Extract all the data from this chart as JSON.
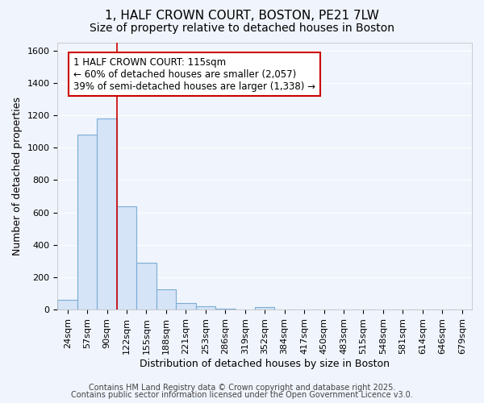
{
  "title1": "1, HALF CROWN COURT, BOSTON, PE21 7LW",
  "title2": "Size of property relative to detached houses in Boston",
  "xlabel": "Distribution of detached houses by size in Boston",
  "ylabel": "Number of detached properties",
  "categories": [
    "24sqm",
    "57sqm",
    "90sqm",
    "122sqm",
    "155sqm",
    "188sqm",
    "221sqm",
    "253sqm",
    "286sqm",
    "319sqm",
    "352sqm",
    "384sqm",
    "417sqm",
    "450sqm",
    "483sqm",
    "515sqm",
    "548sqm",
    "581sqm",
    "614sqm",
    "646sqm",
    "679sqm"
  ],
  "values": [
    60,
    1080,
    1180,
    640,
    290,
    125,
    40,
    20,
    5,
    0,
    15,
    0,
    0,
    0,
    0,
    0,
    0,
    0,
    0,
    0,
    0
  ],
  "bar_color": "#d6e4f7",
  "bar_edge_color": "#7aadd4",
  "red_line_x": 2.5,
  "annotation_text": "1 HALF CROWN COURT: 115sqm\n← 60% of detached houses are smaller (2,057)\n39% of semi-detached houses are larger (1,338) →",
  "annotation_box_facecolor": "#ffffff",
  "annotation_box_edgecolor": "#cc0000",
  "red_line_color": "#cc0000",
  "ylim": [
    0,
    1650
  ],
  "yticks": [
    0,
    200,
    400,
    600,
    800,
    1000,
    1200,
    1400,
    1600
  ],
  "bg_color": "#f0f4fc",
  "grid_color": "#ffffff",
  "footer1": "Contains HM Land Registry data © Crown copyright and database right 2025.",
  "footer2": "Contains public sector information licensed under the Open Government Licence v3.0.",
  "title_fontsize": 11,
  "subtitle_fontsize": 10,
  "axis_label_fontsize": 9,
  "tick_fontsize": 8,
  "annotation_fontsize": 8.5,
  "footer_fontsize": 7
}
